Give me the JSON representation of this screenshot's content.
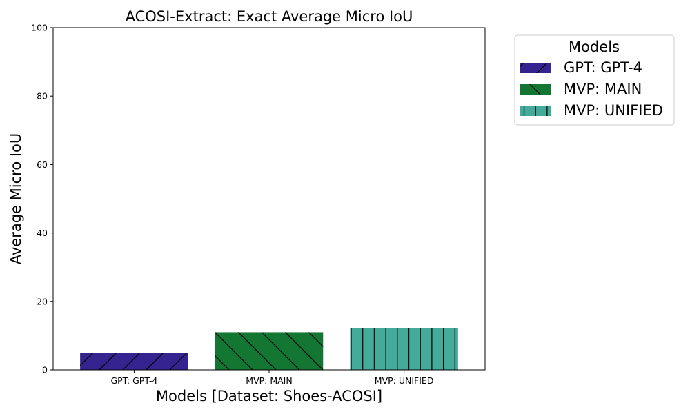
{
  "chart_data": {
    "type": "bar",
    "title": "ACOSI-Extract: Exact Average Micro IoU",
    "xlabel": "Models [Dataset: Shoes-ACOSI]",
    "ylabel": "Average Micro IoU",
    "ylim": [
      0,
      100
    ],
    "yticks": [
      0,
      20,
      40,
      60,
      80,
      100
    ],
    "categories": [
      "GPT: GPT-4",
      "MVP: MAIN",
      "MVP: UNIFIED"
    ],
    "values": [
      5,
      11,
      12.2
    ],
    "bar_colors": [
      "#35238f",
      "#137733",
      "#44aa99"
    ],
    "bar_hatches": [
      "forward-slash",
      "back-slash",
      "vertical"
    ],
    "grid": false,
    "legend": {
      "title": "Models",
      "placement": "outside-top-right",
      "entries": [
        "GPT: GPT-4",
        "MVP: MAIN",
        "MVP: UNIFIED"
      ]
    }
  }
}
